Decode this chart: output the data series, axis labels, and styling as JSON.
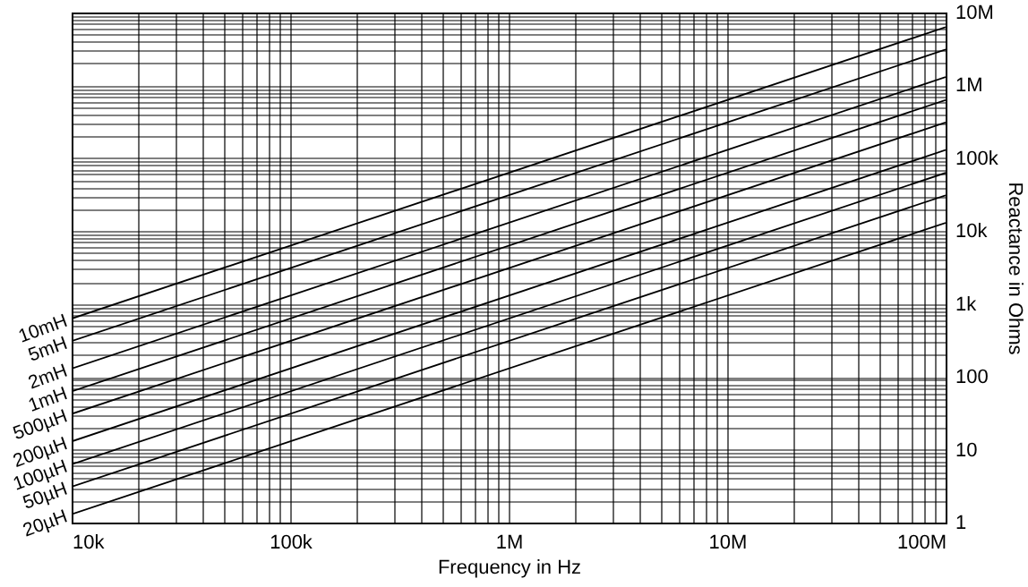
{
  "chart_data": {
    "type": "line",
    "xlabel": "Frequency in Hz",
    "ylabel": "Reactance in Ohms",
    "log": "xy",
    "grid": true,
    "x": [
      10000,
      100000000
    ],
    "xlim": [
      10000,
      100000000
    ],
    "ylim": [
      1,
      10000000
    ],
    "xticks": [
      {
        "value": 10000,
        "label": "10k"
      },
      {
        "value": 20000,
        "label": null
      },
      {
        "value": 30000,
        "label": null
      },
      {
        "value": 40000,
        "label": null
      },
      {
        "value": 50000,
        "label": null
      },
      {
        "value": 60000,
        "label": null
      },
      {
        "value": 70000,
        "label": null
      },
      {
        "value": 80000,
        "label": null
      },
      {
        "value": 90000,
        "label": null
      },
      {
        "value": 100000,
        "label": "100k"
      },
      {
        "value": 200000,
        "label": null
      },
      {
        "value": 300000,
        "label": null
      },
      {
        "value": 400000,
        "label": null
      },
      {
        "value": 500000,
        "label": null
      },
      {
        "value": 600000,
        "label": null
      },
      {
        "value": 700000,
        "label": null
      },
      {
        "value": 800000,
        "label": null
      },
      {
        "value": 900000,
        "label": null
      },
      {
        "value": 1000000,
        "label": "1M"
      },
      {
        "value": 2000000,
        "label": null
      },
      {
        "value": 3000000,
        "label": null
      },
      {
        "value": 4000000,
        "label": null
      },
      {
        "value": 5000000,
        "label": null
      },
      {
        "value": 6000000,
        "label": null
      },
      {
        "value": 7000000,
        "label": null
      },
      {
        "value": 8000000,
        "label": null
      },
      {
        "value": 9000000,
        "label": null
      },
      {
        "value": 10000000,
        "label": "10M"
      },
      {
        "value": 20000000,
        "label": null
      },
      {
        "value": 30000000,
        "label": null
      },
      {
        "value": 40000000,
        "label": null
      },
      {
        "value": 50000000,
        "label": null
      },
      {
        "value": 60000000,
        "label": null
      },
      {
        "value": 70000000,
        "label": null
      },
      {
        "value": 80000000,
        "label": null
      },
      {
        "value": 90000000,
        "label": null
      },
      {
        "value": 100000000,
        "label": "100M"
      }
    ],
    "yticks": [
      1,
      {
        "value": 2,
        "label": null
      },
      {
        "value": 3,
        "label": null
      },
      {
        "value": 4,
        "label": null
      },
      {
        "value": 5,
        "label": null
      },
      {
        "value": 6,
        "label": null
      },
      {
        "value": 7,
        "label": null
      },
      {
        "value": 8,
        "label": null
      },
      {
        "value": 9,
        "label": null
      },
      10,
      {
        "value": 20,
        "label": null
      },
      {
        "value": 30,
        "label": null
      },
      {
        "value": 40,
        "label": null
      },
      {
        "value": 50,
        "label": null
      },
      {
        "value": 60,
        "label": null
      },
      {
        "value": 70,
        "label": null
      },
      {
        "value": 80,
        "label": null
      },
      {
        "value": 90,
        "label": null
      },
      100,
      {
        "value": 200,
        "label": null
      },
      {
        "value": 300,
        "label": null
      },
      {
        "value": 400,
        "label": null
      },
      {
        "value": 500,
        "label": null
      },
      {
        "value": 600,
        "label": null
      },
      {
        "value": 700,
        "label": null
      },
      {
        "value": 800,
        "label": null
      },
      {
        "value": 900,
        "label": null
      },
      {
        "value": 1000,
        "label": "1k"
      },
      {
        "value": 2000,
        "label": null
      },
      {
        "value": 3000,
        "label": null
      },
      {
        "value": 4000,
        "label": null
      },
      {
        "value": 5000,
        "label": null
      },
      {
        "value": 6000,
        "label": null
      },
      {
        "value": 7000,
        "label": null
      },
      {
        "value": 8000,
        "label": null
      },
      {
        "value": 9000,
        "label": null
      },
      {
        "value": 10000,
        "label": "10k"
      },
      {
        "value": 20000,
        "label": null
      },
      {
        "value": 30000,
        "label": null
      },
      {
        "value": 40000,
        "label": null
      },
      {
        "value": 50000,
        "label": null
      },
      {
        "value": 60000,
        "label": null
      },
      {
        "value": 70000,
        "label": null
      },
      {
        "value": 80000,
        "label": null
      },
      {
        "value": 90000,
        "label": null
      },
      {
        "value": 100000,
        "label": "100k"
      },
      {
        "value": 200000,
        "label": null
      },
      {
        "value": 300000,
        "label": null
      },
      {
        "value": 400000,
        "label": null
      },
      {
        "value": 500000,
        "label": null
      },
      {
        "value": 600000,
        "label": null
      },
      {
        "value": 700000,
        "label": null
      },
      {
        "value": 800000,
        "label": null
      },
      {
        "value": 900000,
        "label": null
      },
      {
        "value": 1000000,
        "label": "1M"
      },
      {
        "value": 2000000,
        "label": null
      },
      {
        "value": 3000000,
        "label": null
      },
      {
        "value": 4000000,
        "label": null
      },
      {
        "value": 5000000,
        "label": null
      },
      {
        "value": 6000000,
        "label": null
      },
      {
        "value": 7000000,
        "label": null
      },
      {
        "value": 8000000,
        "label": null
      },
      {
        "value": 9000000,
        "label": null
      },
      {
        "value": 10000000,
        "label": "10M"
      }
    ],
    "series": [
      {
        "name": "10mH",
        "color": "#000000",
        "values": [
          630,
          6300000
        ]
      },
      {
        "name": "5mH",
        "color": "#000000",
        "values": [
          310,
          3100000
        ]
      },
      {
        "name": "2mH",
        "color": "#000000",
        "values": [
          130,
          1300000
        ]
      },
      {
        "name": "1mH",
        "color": "#000000",
        "values": [
          63,
          630000
        ]
      },
      {
        "name": "500µH",
        "color": "#000000",
        "values": [
          31,
          310000
        ]
      },
      {
        "name": "200µH",
        "color": "#000000",
        "values": [
          13,
          130000
        ]
      },
      {
        "name": "100µH",
        "color": "#000000",
        "values": [
          6.3,
          63000
        ]
      },
      {
        "name": "50µH",
        "color": "#000000",
        "values": [
          3.1,
          31000
        ]
      },
      {
        "name": "20µH",
        "color": "#000000",
        "values": [
          1.3,
          13000
        ]
      }
    ]
  }
}
